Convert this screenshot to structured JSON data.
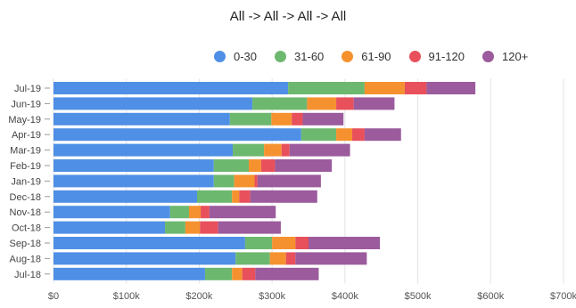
{
  "chart_data": {
    "type": "bar",
    "orientation": "horizontal",
    "stacked": true,
    "title": "All -> All  -> All -> All",
    "categories": [
      "Jul-19",
      "Jun-19",
      "May-19",
      "Apr-19",
      "Mar-19",
      "Feb-19",
      "Jan-19",
      "Dec-18",
      "Nov-18",
      "Oct-18",
      "Sep-18",
      "Aug-18",
      "Jul-18"
    ],
    "series": [
      {
        "name": "0-30",
        "color": "#4f8fe6",
        "values": [
          322000,
          273000,
          242000,
          340000,
          246000,
          220000,
          220000,
          197000,
          160000,
          153000,
          263000,
          250000,
          208000
        ]
      },
      {
        "name": "31-60",
        "color": "#6db86f",
        "values": [
          105000,
          75000,
          57000,
          48000,
          43000,
          48000,
          28000,
          48000,
          26000,
          28000,
          37000,
          47000,
          37000
        ]
      },
      {
        "name": "61-90",
        "color": "#f5922f",
        "values": [
          55000,
          40000,
          28000,
          22000,
          24000,
          17000,
          28000,
          10000,
          16000,
          20000,
          32000,
          22000,
          14000
        ]
      },
      {
        "name": "91-120",
        "color": "#e8505b",
        "values": [
          30000,
          24000,
          15000,
          17000,
          11000,
          19000,
          4000,
          15000,
          12000,
          25000,
          18000,
          13000,
          18000
        ]
      },
      {
        "name": "120+",
        "color": "#9b5b9c",
        "values": [
          67000,
          56000,
          56000,
          50000,
          83000,
          78000,
          87000,
          92000,
          91000,
          86000,
          98000,
          98000,
          87000
        ]
      }
    ],
    "xlim": [
      0,
      700000
    ],
    "xticks": [
      "$0",
      "$100k",
      "$200k",
      "$300k",
      "$400k",
      "$500k",
      "$600k",
      "$700k"
    ],
    "grid": true,
    "legend_position": "top-right"
  }
}
